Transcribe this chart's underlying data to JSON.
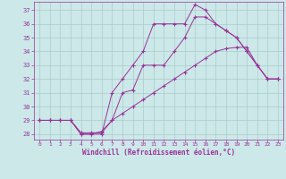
{
  "xlabel": "Windchill (Refroidissement éolien,°C)",
  "bg_color": "#cce8e8",
  "grid_color": "#aacccc",
  "line_color": "#993399",
  "xlim": [
    -0.5,
    23.5
  ],
  "ylim": [
    27.6,
    37.6
  ],
  "yticks": [
    28,
    29,
    30,
    31,
    32,
    33,
    34,
    35,
    36,
    37
  ],
  "xticks": [
    0,
    1,
    2,
    3,
    4,
    5,
    6,
    7,
    8,
    9,
    10,
    11,
    12,
    13,
    14,
    15,
    16,
    17,
    18,
    19,
    20,
    21,
    22,
    23
  ],
  "line1_x": [
    0,
    1,
    2,
    3,
    4,
    5,
    6,
    7,
    8,
    9,
    10,
    11,
    12,
    13,
    14,
    15,
    16,
    17,
    18,
    19,
    20,
    21,
    22,
    23
  ],
  "line1_y": [
    29,
    29,
    29,
    29,
    28,
    28,
    28,
    31,
    32,
    33,
    34,
    36,
    36,
    36,
    36,
    37.4,
    37,
    36,
    35.5,
    35,
    34,
    33,
    32,
    32
  ],
  "line2_x": [
    0,
    1,
    2,
    3,
    4,
    5,
    6,
    7,
    8,
    9,
    10,
    11,
    12,
    13,
    14,
    15,
    16,
    17,
    18,
    19,
    20,
    21,
    22,
    23
  ],
  "line2_y": [
    29,
    29,
    29,
    29,
    28,
    28,
    28.2,
    29,
    31,
    31.2,
    33,
    33,
    33,
    34,
    35,
    36.5,
    36.5,
    36,
    35.5,
    35,
    34,
    33,
    32,
    32
  ],
  "line3_x": [
    0,
    1,
    2,
    3,
    4,
    5,
    6,
    7,
    8,
    9,
    10,
    11,
    12,
    13,
    14,
    15,
    16,
    17,
    18,
    19,
    20,
    21,
    22,
    23
  ],
  "line3_y": [
    29,
    29,
    29,
    29,
    28.1,
    28.1,
    28.1,
    29,
    29.5,
    30,
    30.5,
    31,
    31.5,
    32,
    32.5,
    33,
    33.5,
    34,
    34.2,
    34.3,
    34.3,
    33,
    32,
    32
  ]
}
